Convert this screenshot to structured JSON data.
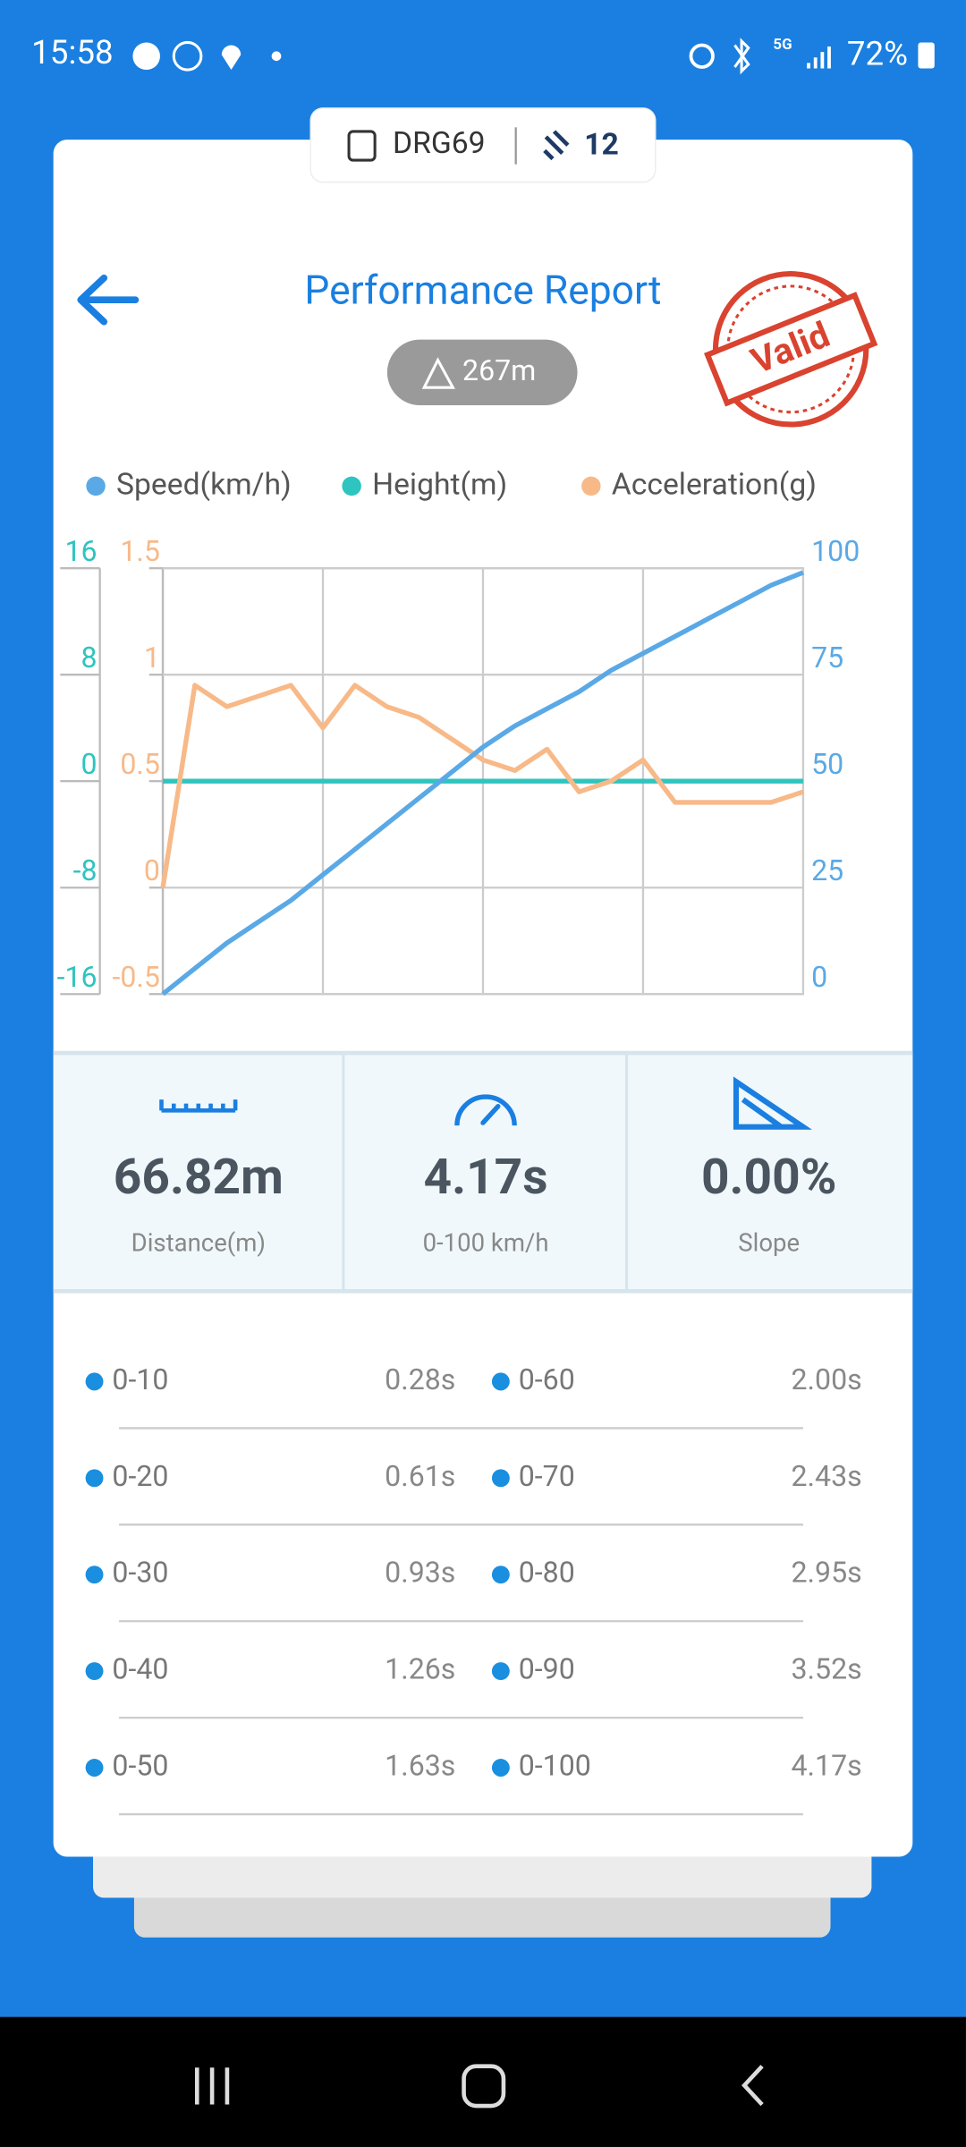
{
  "status_bar": {
    "time": "15:58",
    "network": "5G",
    "battery": "72%"
  },
  "header": {
    "device": "DRG69",
    "satellites": "12",
    "title": "Performance Report",
    "altitude": "267m",
    "stamp": "Valid"
  },
  "chart_data": {
    "type": "line",
    "series": [
      {
        "name": "Speed(km/h)",
        "color": "#5aa9e6",
        "axis": "y",
        "values": [
          0,
          6,
          12,
          17,
          22,
          28,
          34,
          40,
          46,
          52,
          58,
          63,
          67,
          71,
          76,
          80,
          84,
          88,
          92,
          96,
          99
        ]
      },
      {
        "name": "Height(m)",
        "color": "#2ec4bf",
        "axis": "y2",
        "values": [
          0,
          0,
          0,
          0,
          0,
          0,
          0,
          0,
          0,
          0,
          0,
          0,
          0,
          0,
          0,
          0,
          0,
          0,
          0,
          0,
          0
        ]
      },
      {
        "name": "Acceleration(g)",
        "color": "#f8b988",
        "axis": "y3",
        "values": [
          0,
          0.95,
          0.85,
          0.9,
          0.95,
          0.75,
          0.95,
          0.85,
          0.8,
          0.7,
          0.6,
          0.55,
          0.65,
          0.45,
          0.5,
          0.6,
          0.4,
          0.4,
          0.4,
          0.4,
          0.45
        ]
      }
    ],
    "ylim": [
      0,
      100
    ],
    "yticks": [
      0,
      25,
      50,
      75,
      100
    ],
    "y2lim": [
      -16,
      16
    ],
    "y2ticks": [
      -16,
      -8,
      0,
      8,
      16
    ],
    "y3lim": [
      -0.5,
      1.5
    ],
    "y3ticks": [
      -0.5,
      0,
      0.5,
      1,
      1.5
    ],
    "grid": true
  },
  "stats": [
    {
      "value": "66.82m",
      "label": "Distance(m)"
    },
    {
      "value": "4.17s",
      "label": "0-100 km/h"
    },
    {
      "value": "0.00%",
      "label": "Slope"
    }
  ],
  "splits": [
    [
      "0-10",
      "0.28s",
      "0-60",
      "2.00s"
    ],
    [
      "0-20",
      "0.61s",
      "0-70",
      "2.43s"
    ],
    [
      "0-30",
      "0.93s",
      "0-80",
      "2.95s"
    ],
    [
      "0-40",
      "1.26s",
      "0-90",
      "3.52s"
    ],
    [
      "0-50",
      "1.63s",
      "0-100",
      "4.17s"
    ]
  ]
}
